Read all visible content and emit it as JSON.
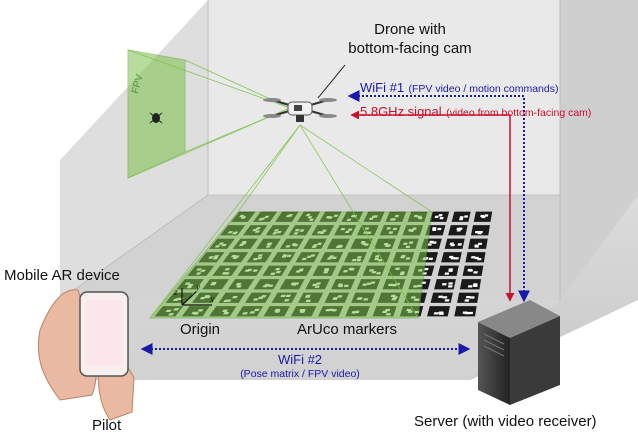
{
  "labels": {
    "drone_line1": "Drone with",
    "drone_line2": "bottom-facing cam",
    "wifi1_main": "WiFi #1",
    "wifi1_detail": "(FPV video / motion commands)",
    "signal_main": "5.8GHz signal",
    "signal_detail": "(video from bottom-facing cam)",
    "fpv": "FPV",
    "mobile_ar": "Mobile AR device",
    "origin": "Origin",
    "aruco": "ArUco markers",
    "wifi2_main": "WiFi #2",
    "wifi2_detail": "(Pose matrix / FPV video)",
    "pilot": "Pilot",
    "server": "Server (with video receiver)",
    "axis_x": "x",
    "axis_y": "y",
    "axis_z": "z"
  },
  "colors": {
    "wifi_blue": "#1a1aa8",
    "signal_red": "#c8102e",
    "green_overlay": "#7cc24a",
    "room_gray": "#d9d9d9"
  },
  "icons": [
    "drone-icon",
    "server-icon",
    "phone-icon",
    "hand-icon",
    "bug-icon"
  ]
}
